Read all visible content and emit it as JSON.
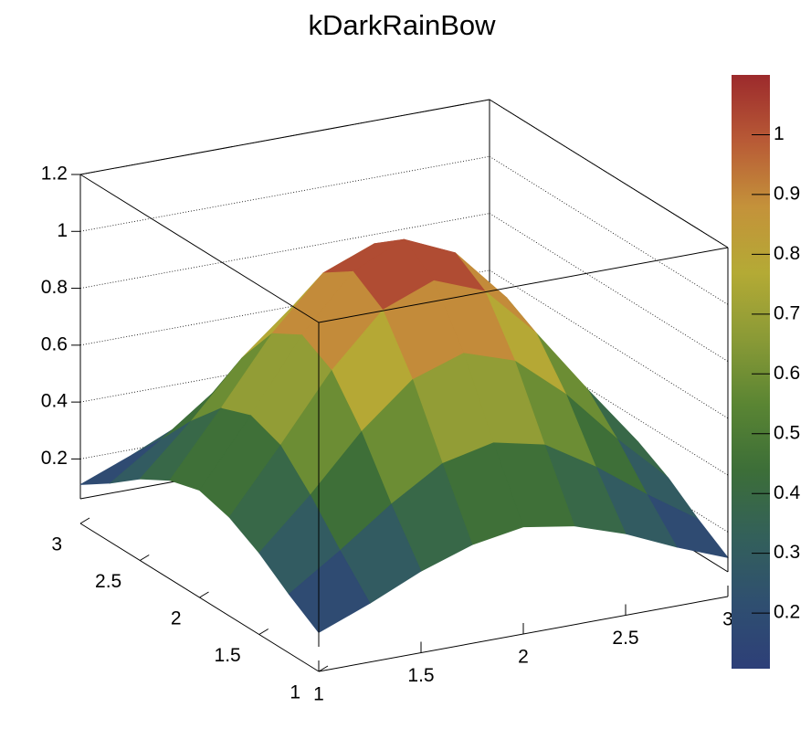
{
  "chart_data": {
    "type": "surface",
    "title": "kDarkRainBow",
    "x": [
      1,
      1.25,
      1.5,
      1.75,
      2,
      2.25,
      2.5,
      2.75,
      3
    ],
    "y": [
      1,
      1.25,
      1.5,
      1.75,
      2,
      2.25,
      2.5,
      2.75,
      3
    ],
    "z": [
      [
        0.11,
        0.18,
        0.26,
        0.32,
        0.35,
        0.32,
        0.26,
        0.18,
        0.11
      ],
      [
        0.18,
        0.3,
        0.43,
        0.54,
        0.58,
        0.54,
        0.43,
        0.3,
        0.18
      ],
      [
        0.26,
        0.43,
        0.62,
        0.77,
        0.83,
        0.77,
        0.62,
        0.43,
        0.26
      ],
      [
        0.32,
        0.54,
        0.77,
        0.95,
        1.02,
        0.95,
        0.77,
        0.54,
        0.32
      ],
      [
        0.35,
        0.58,
        0.83,
        1.02,
        1.1,
        1.02,
        0.83,
        0.58,
        0.35
      ],
      [
        0.32,
        0.54,
        0.77,
        0.95,
        1.02,
        0.95,
        0.77,
        0.54,
        0.32
      ],
      [
        0.26,
        0.43,
        0.62,
        0.77,
        0.83,
        0.77,
        0.62,
        0.43,
        0.26
      ],
      [
        0.18,
        0.3,
        0.43,
        0.54,
        0.58,
        0.54,
        0.43,
        0.3,
        0.18
      ],
      [
        0.11,
        0.18,
        0.26,
        0.32,
        0.35,
        0.32,
        0.26,
        0.18,
        0.11
      ]
    ],
    "xlim": [
      1,
      3
    ],
    "ylim": [
      1,
      3
    ],
    "zlim": [
      0.06,
      1.2
    ],
    "xticks": [
      1,
      1.5,
      2,
      2.5,
      3
    ],
    "yticks": [
      1,
      1.5,
      2,
      2.5,
      3
    ],
    "zticks": [
      0.2,
      0.4,
      0.6,
      0.8,
      1,
      1.2
    ],
    "colorbar_lim": [
      0.107,
      1.1
    ],
    "colorbar_ticks": [
      0.2,
      0.3,
      0.4,
      0.5,
      0.6,
      0.7,
      0.8,
      0.9,
      1
    ],
    "palette": [
      "#2d3f78",
      "#2f4f70",
      "#33605a",
      "#3c6e38",
      "#5a8533",
      "#8a9a36",
      "#b4aa35",
      "#c4923a",
      "#b85a36",
      "#9c2a2c"
    ],
    "grid": true
  }
}
